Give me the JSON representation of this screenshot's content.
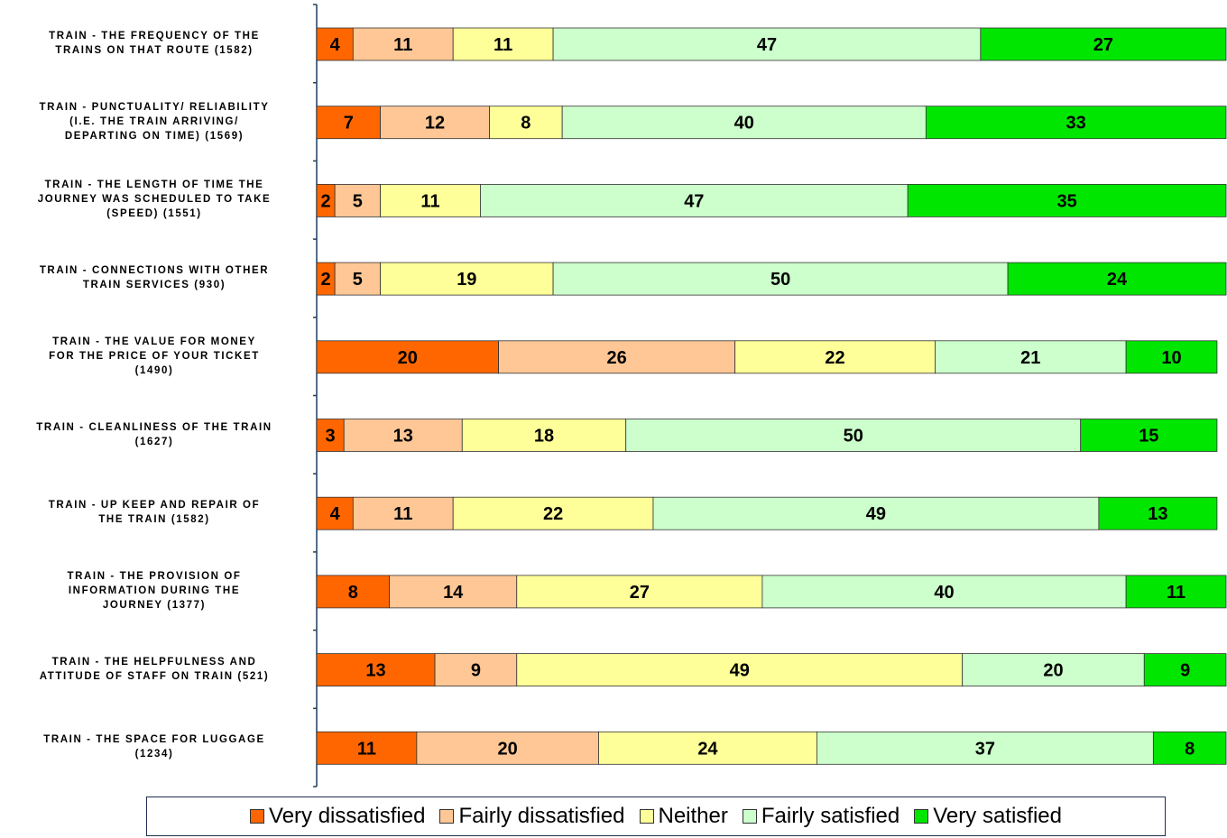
{
  "chart_data": {
    "type": "bar",
    "orientation": "horizontal",
    "stacked": true,
    "title": "",
    "xlabel": "",
    "ylabel": "",
    "xlim": [
      0,
      100
    ],
    "grid": false,
    "legend_position": "bottom",
    "categories": [
      "TRAIN - THE FREQUENCY OF THE\nTRAINS ON THAT ROUTE (1582)",
      "TRAIN - PUNCTUALITY/ RELIABILITY\n(I.E. THE TRAIN ARRIVING/\nDEPARTING ON TIME) (1569)",
      "TRAIN - THE LENGTH OF TIME THE\nJOURNEY WAS SCHEDULED TO TAKE\n(SPEED) (1551)",
      "TRAIN - CONNECTIONS WITH OTHER\nTRAIN SERVICES (930)",
      "TRAIN - THE VALUE FOR MONEY\nFOR THE PRICE OF YOUR TICKET\n(1490)",
      "TRAIN - CLEANLINESS OF THE TRAIN\n(1627)",
      "TRAIN - UP KEEP AND REPAIR OF\nTHE TRAIN (1582)",
      "TRAIN - THE PROVISION OF\nINFORMATION DURING THE\nJOURNEY (1377)",
      "TRAIN - THE HELPFULNESS AND\nATTITUDE OF STAFF ON TRAIN (521)",
      "TRAIN - THE SPACE FOR LUGGAGE\n(1234)"
    ],
    "series": [
      {
        "name": "Very dissatisfied",
        "color": "#ff6600",
        "values": [
          4,
          7,
          2,
          2,
          20,
          3,
          4,
          8,
          13,
          11
        ]
      },
      {
        "name": "Fairly dissatisfied",
        "color": "#ffc796",
        "values": [
          11,
          12,
          5,
          5,
          26,
          13,
          11,
          14,
          9,
          20
        ]
      },
      {
        "name": "Neither",
        "color": "#ffff99",
        "values": [
          11,
          8,
          11,
          19,
          22,
          18,
          22,
          27,
          49,
          24
        ]
      },
      {
        "name": "Fairly satisfied",
        "color": "#ccffcc",
        "values": [
          47,
          40,
          47,
          50,
          21,
          50,
          49,
          40,
          20,
          37
        ]
      },
      {
        "name": "Very satisfied",
        "color": "#00e600",
        "values": [
          27,
          33,
          35,
          24,
          10,
          15,
          13,
          11,
          9,
          8
        ]
      }
    ]
  }
}
